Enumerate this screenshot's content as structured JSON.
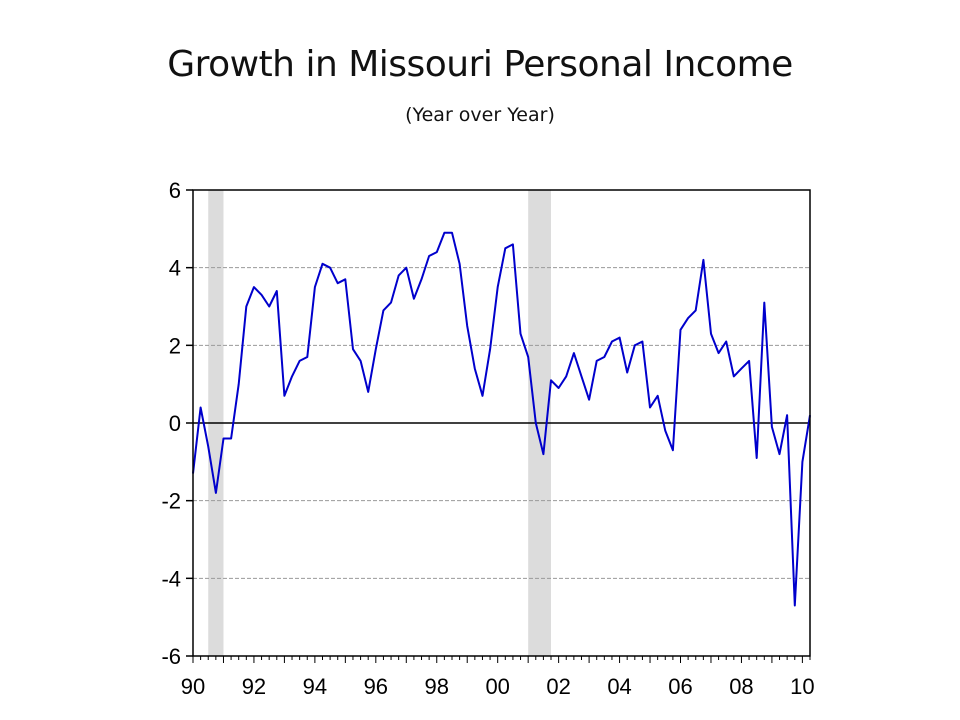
{
  "title": "Growth in Missouri Personal Income",
  "subtitle": "(Year over Year)",
  "colors": {
    "line": "#0000cc",
    "recession": "#dcdcdc",
    "grid": "#9a9a9a",
    "zero": "#000000"
  },
  "chart_data": {
    "type": "line",
    "title": "Growth in Missouri Personal Income",
    "subtitle": "(Year over Year)",
    "xlabel": "",
    "ylabel": "",
    "ylim": [
      -6,
      6
    ],
    "xlim": [
      1990.0,
      2010.25
    ],
    "yticks": [
      6,
      4,
      2,
      0,
      -2,
      -4,
      -6
    ],
    "ytick_labels": [
      "6",
      "4",
      "2",
      "0",
      "-2",
      "-4",
      "-6"
    ],
    "xtick_values": [
      1990,
      1992,
      1994,
      1996,
      1998,
      2000,
      2002,
      2004,
      2006,
      2008,
      2010
    ],
    "xtick_labels": [
      "90",
      "92",
      "94",
      "96",
      "98",
      "00",
      "02",
      "04",
      "06",
      "08",
      "10"
    ],
    "grid": "horizontal dotted",
    "legend": "none",
    "recessions": [
      [
        1990.5,
        1991.0
      ],
      [
        2001.0,
        2001.75
      ]
    ],
    "series": [
      {
        "frequency": "quarterly",
        "start": "1990Q1",
        "values": [
          -1.3,
          0.4,
          -0.6,
          -1.8,
          -0.4,
          -0.4,
          1.0,
          3.0,
          3.5,
          3.3,
          3.0,
          3.4,
          0.7,
          1.2,
          1.6,
          1.7,
          3.5,
          4.1,
          4.0,
          3.6,
          3.7,
          1.9,
          1.6,
          0.8,
          1.9,
          2.9,
          3.1,
          3.8,
          4.0,
          3.2,
          3.7,
          4.3,
          4.4,
          4.9,
          4.9,
          4.1,
          2.5,
          1.4,
          0.7,
          1.9,
          3.5,
          4.5,
          4.6,
          2.3,
          1.7,
          0.0,
          -0.8,
          1.1,
          0.9,
          1.2,
          1.8,
          1.2,
          0.6,
          1.6,
          1.7,
          2.1,
          2.2,
          1.3,
          2.0,
          2.1,
          0.4,
          0.7,
          -0.2,
          -0.7,
          2.4,
          2.7,
          2.9,
          4.2,
          2.3,
          1.8,
          2.1,
          1.2,
          1.4,
          1.6,
          -0.9,
          3.1,
          -0.1,
          -0.8,
          0.2,
          -4.7,
          -1.0,
          0.2
        ]
      }
    ]
  }
}
